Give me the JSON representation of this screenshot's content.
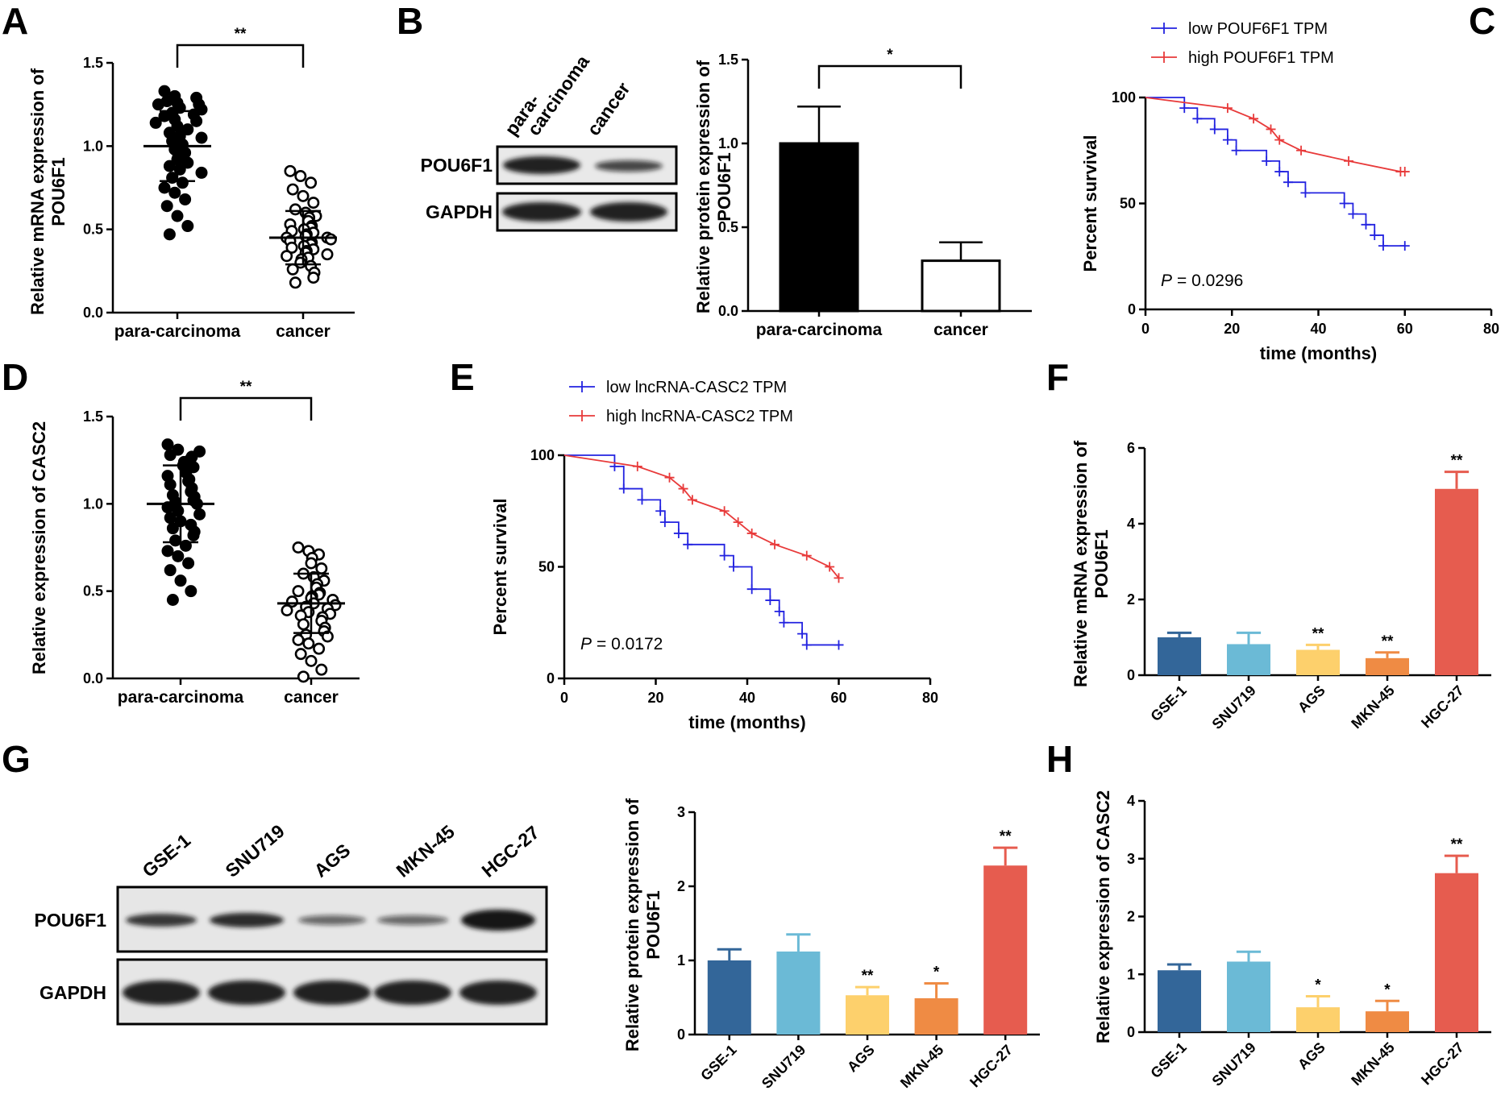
{
  "chart_data": [
    {
      "panel": "A",
      "type": "scatter",
      "ylabel": "Relative mRNA expression of POU6F1",
      "categories": [
        "para-carcinoma",
        "cancer"
      ],
      "ylim": [
        0,
        1.5
      ],
      "yticks": [
        "0.0",
        "0.5",
        "1.0",
        "1.5"
      ],
      "significance": "**",
      "groups": [
        {
          "name": "para-carcinoma",
          "filled": true,
          "mean": 1.0,
          "sd": 0.21,
          "values": [
            1.33,
            1.3,
            1.29,
            1.27,
            1.26,
            1.25,
            1.25,
            1.23,
            1.22,
            1.2,
            1.19,
            1.18,
            1.16,
            1.15,
            1.14,
            1.12,
            1.1,
            1.08,
            1.06,
            1.05,
            1.03,
            1.01,
            1.0,
            0.98,
            0.96,
            0.94,
            0.92,
            0.9,
            0.88,
            0.86,
            0.84,
            0.81,
            0.78,
            0.75,
            0.72,
            0.68,
            0.64,
            0.58,
            0.52,
            0.47
          ]
        },
        {
          "name": "cancer",
          "filled": false,
          "mean": 0.45,
          "sd": 0.16,
          "values": [
            0.85,
            0.82,
            0.78,
            0.74,
            0.7,
            0.66,
            0.62,
            0.6,
            0.58,
            0.57,
            0.55,
            0.53,
            0.52,
            0.51,
            0.5,
            0.49,
            0.48,
            0.47,
            0.46,
            0.45,
            0.45,
            0.44,
            0.43,
            0.42,
            0.41,
            0.4,
            0.39,
            0.38,
            0.37,
            0.36,
            0.35,
            0.34,
            0.33,
            0.32,
            0.3,
            0.28,
            0.26,
            0.24,
            0.21,
            0.18
          ]
        }
      ]
    },
    {
      "panel": "B",
      "type": "bar",
      "ylabel": "Relative protein expression of POU6F1",
      "categories": [
        "para-carcinoma",
        "cancer"
      ],
      "values": [
        1.0,
        0.3
      ],
      "errors": [
        0.22,
        0.11
      ],
      "fills": [
        "#000000",
        "#ffffff"
      ],
      "ylim": [
        0,
        1.5
      ],
      "yticks": [
        "0.0",
        "0.5",
        "1.0",
        "1.5"
      ],
      "significance": "*",
      "blot": {
        "lanes": [
          "para-carcinoma",
          "cancer"
        ],
        "lane_label_lines": [
          [
            "para-",
            "carcinoma"
          ],
          [
            "cancer"
          ]
        ],
        "rows": [
          "POU6F1",
          "GAPDH"
        ]
      }
    },
    {
      "panel": "C",
      "type": "line",
      "xlabel": "time (months)",
      "ylabel": "Percent survival",
      "xlim": [
        0,
        80
      ],
      "ylim": [
        0,
        100
      ],
      "xticks": [
        0,
        20,
        40,
        60,
        80
      ],
      "yticks": [
        0,
        50,
        100
      ],
      "pvalue_label": "P",
      "pvalue": "= 0.0296",
      "series": [
        {
          "name": "low POUF6F1 TPM",
          "color": "#2323e0",
          "x": [
            0,
            9,
            9,
            12,
            12,
            16,
            16,
            19,
            19,
            21,
            21,
            28,
            28,
            31,
            31,
            33,
            33,
            37,
            37,
            46,
            46,
            48,
            48,
            51,
            51,
            53,
            53,
            55,
            55,
            60
          ],
          "y": [
            100,
            100,
            95,
            95,
            90,
            90,
            85,
            85,
            80,
            80,
            75,
            75,
            70,
            70,
            65,
            65,
            60,
            60,
            55,
            55,
            50,
            50,
            45,
            45,
            40,
            40,
            35,
            35,
            30,
            30
          ],
          "censored": [
            [
              9,
              95
            ],
            [
              12,
              90
            ],
            [
              16,
              85
            ],
            [
              19,
              80
            ],
            [
              21,
              75
            ],
            [
              28,
              70
            ],
            [
              31,
              65
            ],
            [
              33,
              60
            ],
            [
              37,
              55
            ],
            [
              46,
              50
            ],
            [
              48,
              45
            ],
            [
              51,
              40
            ],
            [
              53,
              35
            ],
            [
              55,
              30
            ],
            [
              60,
              30
            ]
          ]
        },
        {
          "name": "high POUF6F1 TPM",
          "color": "#e83a3a",
          "x": [
            0,
            19,
            25,
            29,
            31,
            36,
            47,
            59,
            60
          ],
          "y": [
            100,
            95,
            90,
            85,
            80,
            75,
            70,
            65,
            65
          ],
          "censored": [
            [
              19,
              95
            ],
            [
              25,
              90
            ],
            [
              29,
              85
            ],
            [
              31,
              80
            ],
            [
              36,
              75
            ],
            [
              47,
              70
            ],
            [
              59,
              65
            ],
            [
              60,
              65
            ]
          ]
        }
      ]
    },
    {
      "panel": "D",
      "type": "scatter",
      "ylabel": "Relative expression of CASC2",
      "categories": [
        "para-carcinoma",
        "cancer"
      ],
      "ylim": [
        0,
        1.5
      ],
      "yticks": [
        "0.0",
        "0.5",
        "1.0",
        "1.5"
      ],
      "significance": "**",
      "groups": [
        {
          "name": "para-carcinoma",
          "filled": true,
          "mean": 1.0,
          "sd": 0.22,
          "values": [
            1.34,
            1.31,
            1.3,
            1.28,
            1.27,
            1.26,
            1.24,
            1.22,
            1.21,
            1.19,
            1.18,
            1.16,
            1.14,
            1.13,
            1.11,
            1.09,
            1.07,
            1.05,
            1.04,
            1.02,
            1.01,
            1.0,
            0.98,
            0.96,
            0.94,
            0.92,
            0.9,
            0.88,
            0.86,
            0.84,
            0.82,
            0.79,
            0.76,
            0.73,
            0.7,
            0.66,
            0.62,
            0.56,
            0.5,
            0.45
          ]
        },
        {
          "name": "cancer",
          "filled": false,
          "mean": 0.43,
          "sd": 0.17,
          "values": [
            0.75,
            0.73,
            0.71,
            0.69,
            0.66,
            0.63,
            0.6,
            0.58,
            0.56,
            0.54,
            0.52,
            0.5,
            0.49,
            0.48,
            0.47,
            0.46,
            0.45,
            0.44,
            0.43,
            0.42,
            0.41,
            0.4,
            0.39,
            0.38,
            0.37,
            0.36,
            0.35,
            0.33,
            0.31,
            0.29,
            0.27,
            0.25,
            0.24,
            0.22,
            0.2,
            0.17,
            0.14,
            0.1,
            0.05,
            0.01
          ]
        }
      ]
    },
    {
      "panel": "E",
      "type": "line",
      "xlabel": "time (months)",
      "ylabel": "Percent survival",
      "xlim": [
        0,
        80
      ],
      "ylim": [
        0,
        100
      ],
      "xticks": [
        0,
        20,
        40,
        60,
        80
      ],
      "yticks": [
        0,
        50,
        100
      ],
      "pvalue_label": "P",
      "pvalue": "= 0.0172",
      "series": [
        {
          "name": "low lncRNA-CASC2 TPM",
          "color": "#2323e0",
          "x": [
            0,
            11,
            11,
            13,
            13,
            17,
            17,
            21,
            21,
            22,
            22,
            25,
            25,
            27,
            27,
            35,
            35,
            37,
            37,
            41,
            41,
            45,
            45,
            47,
            47,
            48,
            48,
            52,
            52,
            53,
            53,
            60
          ],
          "y": [
            100,
            100,
            95,
            95,
            85,
            85,
            80,
            80,
            75,
            75,
            70,
            70,
            65,
            65,
            60,
            60,
            55,
            55,
            50,
            50,
            40,
            40,
            35,
            35,
            30,
            30,
            25,
            25,
            20,
            20,
            15,
            15
          ],
          "censored": [
            [
              11,
              95
            ],
            [
              13,
              85
            ],
            [
              17,
              80
            ],
            [
              21,
              75
            ],
            [
              22,
              70
            ],
            [
              25,
              65
            ],
            [
              27,
              60
            ],
            [
              35,
              55
            ],
            [
              37,
              50
            ],
            [
              41,
              40
            ],
            [
              45,
              35
            ],
            [
              47,
              30
            ],
            [
              48,
              25
            ],
            [
              52,
              20
            ],
            [
              53,
              15
            ],
            [
              60,
              15
            ]
          ]
        },
        {
          "name": "high lncRNA-CASC2 TPM",
          "color": "#e83a3a",
          "x": [
            0,
            16,
            23,
            26,
            28,
            35,
            38,
            41,
            46,
            53,
            58,
            60
          ],
          "y": [
            100,
            95,
            90,
            85,
            80,
            75,
            70,
            65,
            60,
            55,
            50,
            45
          ],
          "censored": [
            [
              16,
              95
            ],
            [
              23,
              90
            ],
            [
              26,
              85
            ],
            [
              28,
              80
            ],
            [
              35,
              75
            ],
            [
              38,
              70
            ],
            [
              41,
              65
            ],
            [
              46,
              60
            ],
            [
              53,
              55
            ],
            [
              58,
              50
            ],
            [
              60,
              45
            ]
          ]
        }
      ]
    },
    {
      "panel": "F",
      "type": "bar",
      "ylabel": "Relative mRNA expression of POU6F1",
      "categories": [
        "GSE-1",
        "SNU719",
        "AGS",
        "MKN-45",
        "HGC-27"
      ],
      "values": [
        1.0,
        0.82,
        0.67,
        0.45,
        4.92
      ],
      "errors": [
        0.12,
        0.3,
        0.13,
        0.15,
        0.45
      ],
      "significance": [
        "",
        "",
        "**",
        "**",
        "**"
      ],
      "colors": [
        "#336699",
        "#6bbad6",
        "#fdd06c",
        "#ef8b44",
        "#e65c4f"
      ],
      "ylim": [
        0,
        6
      ],
      "yticks": [
        "0",
        "2",
        "4",
        "6"
      ]
    },
    {
      "panel": "G",
      "type": "bar",
      "ylabel": "Relative protein expression of POU6F1",
      "categories": [
        "GSE-1",
        "SNU719",
        "AGS",
        "MKN-45",
        "HGC-27"
      ],
      "values": [
        1.0,
        1.12,
        0.53,
        0.49,
        2.28
      ],
      "errors": [
        0.15,
        0.23,
        0.11,
        0.2,
        0.24
      ],
      "significance": [
        "",
        "",
        "**",
        "*",
        "**"
      ],
      "colors": [
        "#336699",
        "#6bbad6",
        "#fdd06c",
        "#ef8b44",
        "#e65c4f"
      ],
      "ylim": [
        0,
        3
      ],
      "yticks": [
        "0",
        "1",
        "2",
        "3"
      ],
      "blot": {
        "lanes": [
          "GSE-1",
          "SNU719",
          "AGS",
          "MKN-45",
          "HGC-27"
        ],
        "rows": [
          "POU6F1",
          "GAPDH"
        ]
      }
    },
    {
      "panel": "H",
      "type": "bar",
      "ylabel": "Relative expression of CASC2",
      "categories": [
        "GSE-1",
        "SNU719",
        "AGS",
        "MKN-45",
        "HGC-27"
      ],
      "values": [
        1.07,
        1.22,
        0.43,
        0.36,
        2.75
      ],
      "errors": [
        0.1,
        0.17,
        0.19,
        0.18,
        0.3
      ],
      "significance": [
        "",
        "",
        "*",
        "*",
        "**"
      ],
      "colors": [
        "#336699",
        "#6bbad6",
        "#fdd06c",
        "#ef8b44",
        "#e65c4f"
      ],
      "ylim": [
        0,
        4
      ],
      "yticks": [
        "0",
        "1",
        "2",
        "3",
        "4"
      ]
    }
  ]
}
